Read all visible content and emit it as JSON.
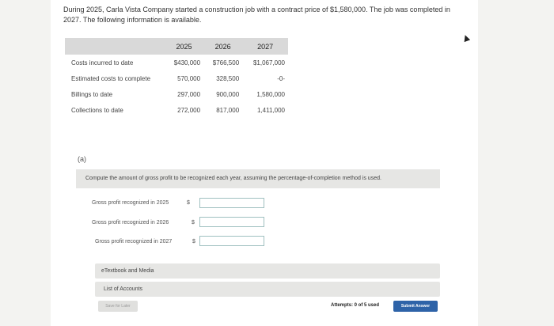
{
  "problem_text": "During 2025, Carla Vista Company started a construction job with a contract price of $1,580,000. The job was completed in 2027. The following information is available.",
  "table": {
    "headers": [
      "",
      "2025",
      "2026",
      "2027"
    ],
    "rows": [
      {
        "label": "Costs incurred to date",
        "values": [
          "$430,000",
          "$766,500",
          "$1,067,000"
        ]
      },
      {
        "label": "Estimated costs to complete",
        "values": [
          "570,000",
          "328,500",
          "-0-"
        ]
      },
      {
        "label": "Billings to date",
        "values": [
          "297,000",
          "900,000",
          "1,580,000"
        ]
      },
      {
        "label": "Collections to date",
        "values": [
          "272,000",
          "817,000",
          "1,411,000"
        ]
      }
    ]
  },
  "part_label": "(a)",
  "instruction": "Compute the amount of gross profit to be recognized each year, assuming the percentage-of-completion method is used.",
  "answers": [
    {
      "label": "Gross profit recognized in 2025",
      "currency": "$",
      "value": ""
    },
    {
      "label": "Gross profit recognized in 2026",
      "currency": "$",
      "value": ""
    },
    {
      "label": "Gross profit recognized in 2027",
      "currency": "$",
      "value": ""
    }
  ],
  "resources": {
    "textbook": "eTextbook and Media",
    "accounts": "List of Accounts"
  },
  "footer": {
    "save_label": "Save for Later",
    "attempts": "Attempts: 0 of 5 used",
    "submit_label": "Submit Answer"
  }
}
